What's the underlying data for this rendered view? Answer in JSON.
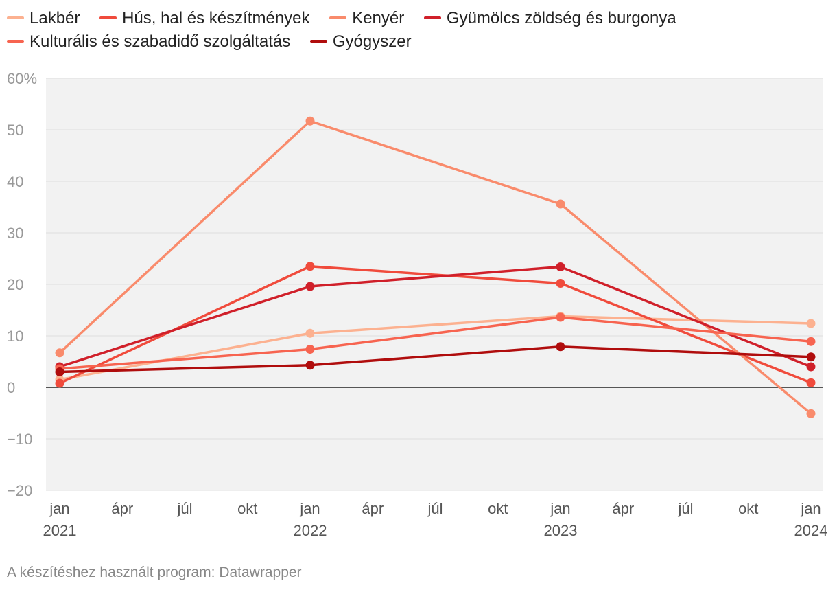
{
  "chart_data": {
    "type": "line",
    "title": "",
    "xlabel": "",
    "ylabel": "",
    "ylim": [
      -20,
      60
    ],
    "yticks": [
      60,
      50,
      40,
      30,
      20,
      10,
      0,
      -10,
      -20
    ],
    "ytick_labels": [
      "60%",
      "50",
      "40",
      "30",
      "20",
      "10",
      "0",
      "−10",
      "−20"
    ],
    "x": [
      "2021-01",
      "2022-01",
      "2023-01",
      "2024-01"
    ],
    "xticks": [
      {
        "month": 0,
        "label": "jan",
        "year": "2021"
      },
      {
        "month": 3,
        "label": "ápr",
        "year": ""
      },
      {
        "month": 6,
        "label": "júl",
        "year": ""
      },
      {
        "month": 9,
        "label": "okt",
        "year": ""
      },
      {
        "month": 12,
        "label": "jan",
        "year": "2022"
      },
      {
        "month": 15,
        "label": "ápr",
        "year": ""
      },
      {
        "month": 18,
        "label": "júl",
        "year": ""
      },
      {
        "month": 21,
        "label": "okt",
        "year": ""
      },
      {
        "month": 24,
        "label": "jan",
        "year": "2023"
      },
      {
        "month": 27,
        "label": "ápr",
        "year": ""
      },
      {
        "month": 30,
        "label": "júl",
        "year": ""
      },
      {
        "month": 33,
        "label": "okt",
        "year": ""
      },
      {
        "month": 36,
        "label": "jan",
        "year": "2024"
      }
    ],
    "grid": true,
    "legend": "top",
    "series": [
      {
        "name": "Lakbér",
        "color": "#fcb190",
        "values": [
          1.5,
          10.5,
          13.8,
          12.4
        ]
      },
      {
        "name": "Hús, hal és készítmények",
        "color": "#f04b3c",
        "values": [
          0.8,
          23.5,
          20.2,
          0.9
        ]
      },
      {
        "name": "Kenyér",
        "color": "#f98b6c",
        "values": [
          6.7,
          51.7,
          35.6,
          -5.1
        ]
      },
      {
        "name": "Gyümölcs zöldség és burgonya",
        "color": "#d0202a",
        "values": [
          4.0,
          19.6,
          23.4,
          4.0
        ]
      },
      {
        "name": "Kulturális és szabadidő szolgáltatás",
        "color": "#f76450",
        "values": [
          3.6,
          7.4,
          13.6,
          8.9
        ]
      },
      {
        "name": "Gyógyszer",
        "color": "#b00d0d",
        "values": [
          3.0,
          4.3,
          7.9,
          5.9
        ]
      }
    ]
  },
  "footer": "A készítéshez használt program: Datawrapper"
}
